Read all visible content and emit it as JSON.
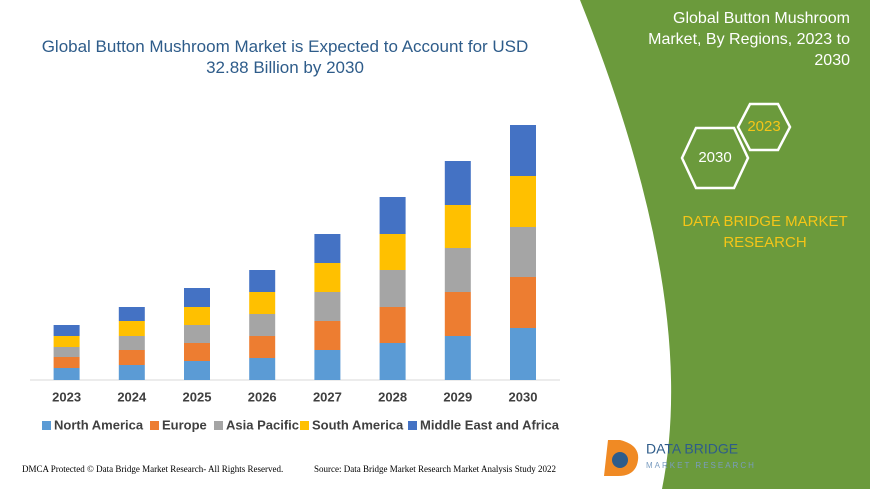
{
  "chart_data": {
    "type": "stacked_bar",
    "title": "Global Button Mushroom Market is Expected to Account for USD 32.88 Billion by 2030",
    "categories": [
      "2023",
      "2024",
      "2025",
      "2026",
      "2027",
      "2028",
      "2029",
      "2030"
    ],
    "series": [
      {
        "name": "North America",
        "color": "#5b9bd5",
        "values": [
          12,
          15,
          19,
          22,
          30,
          37,
          44,
          52
        ]
      },
      {
        "name": "Europe",
        "color": "#ed7d31",
        "values": [
          11,
          15,
          18,
          22,
          29,
          36,
          44,
          51
        ]
      },
      {
        "name": "Asia Pacific",
        "color": "#a5a5a5",
        "values": [
          10,
          14,
          18,
          22,
          29,
          37,
          44,
          50
        ]
      },
      {
        "name": "South America",
        "color": "#ffc000",
        "values": [
          11,
          15,
          18,
          22,
          29,
          36,
          43,
          51
        ]
      },
      {
        "name": "Middle East and Africa",
        "color": "#4472c4",
        "values": [
          11,
          14,
          19,
          22,
          29,
          37,
          44,
          51
        ]
      }
    ]
  },
  "panel": {
    "title": "Global Button Mushroom Market, By Regions, 2023 to 2030",
    "hex_labels": [
      "2030",
      "2023"
    ],
    "brand": "DATA BRIDGE MARKET RESEARCH"
  },
  "footer": {
    "left": "DMCA Protected © Data Bridge Market Research- All Rights Reserved.",
    "right": "Source: Data Bridge Market Research Market Analysis Study 2022"
  },
  "logo": {
    "name": "DATA BRIDGE",
    "tagline": "MARKET RESEARCH"
  }
}
